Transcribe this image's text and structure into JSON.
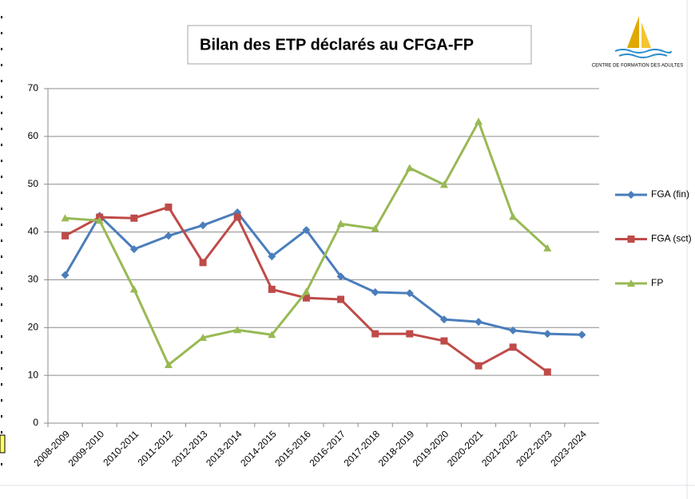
{
  "chart_data": {
    "type": "line",
    "title": "Bilan des ETP déclarés au CFGA-FP",
    "logo_text": "CENTRE DE FORMATION DES ADULTES",
    "categories": [
      "2008-2009",
      "2009-2010",
      "2010-2011",
      "2011-2012",
      "2012-2013",
      "2013-2014",
      "2014-2015",
      "2015-2016",
      "2016-2017",
      "2017-2018",
      "2018-2019",
      "2019-2020",
      "2020-2021",
      "2021-2022",
      "2022-2023",
      "2023-2024"
    ],
    "series": [
      {
        "name": "FGA (fin)",
        "color": "#4a7ebb",
        "marker": "diamond",
        "values": [
          31.0,
          43.4,
          36.4,
          39.2,
          41.4,
          44.1,
          34.9,
          40.4,
          30.7,
          27.4,
          27.2,
          21.7,
          21.2,
          19.4,
          18.7,
          18.5
        ]
      },
      {
        "name": "FGA (sct)",
        "color": "#be4b48",
        "marker": "square",
        "values": [
          39.2,
          43.1,
          42.9,
          45.2,
          33.6,
          43.1,
          28.0,
          26.2,
          25.9,
          18.7,
          18.7,
          17.2,
          12.0,
          15.9,
          10.7,
          null
        ]
      },
      {
        "name": "FP",
        "color": "#98b954",
        "marker": "triangle",
        "values": [
          42.9,
          42.4,
          28.0,
          12.2,
          17.9,
          19.5,
          18.5,
          27.5,
          41.7,
          40.7,
          53.4,
          49.9,
          63.1,
          43.2,
          36.6,
          null
        ]
      }
    ],
    "ylim": [
      0,
      70
    ],
    "yticks": [
      0,
      10,
      20,
      30,
      40,
      50,
      60,
      70
    ],
    "grid": true,
    "legend": "right"
  }
}
